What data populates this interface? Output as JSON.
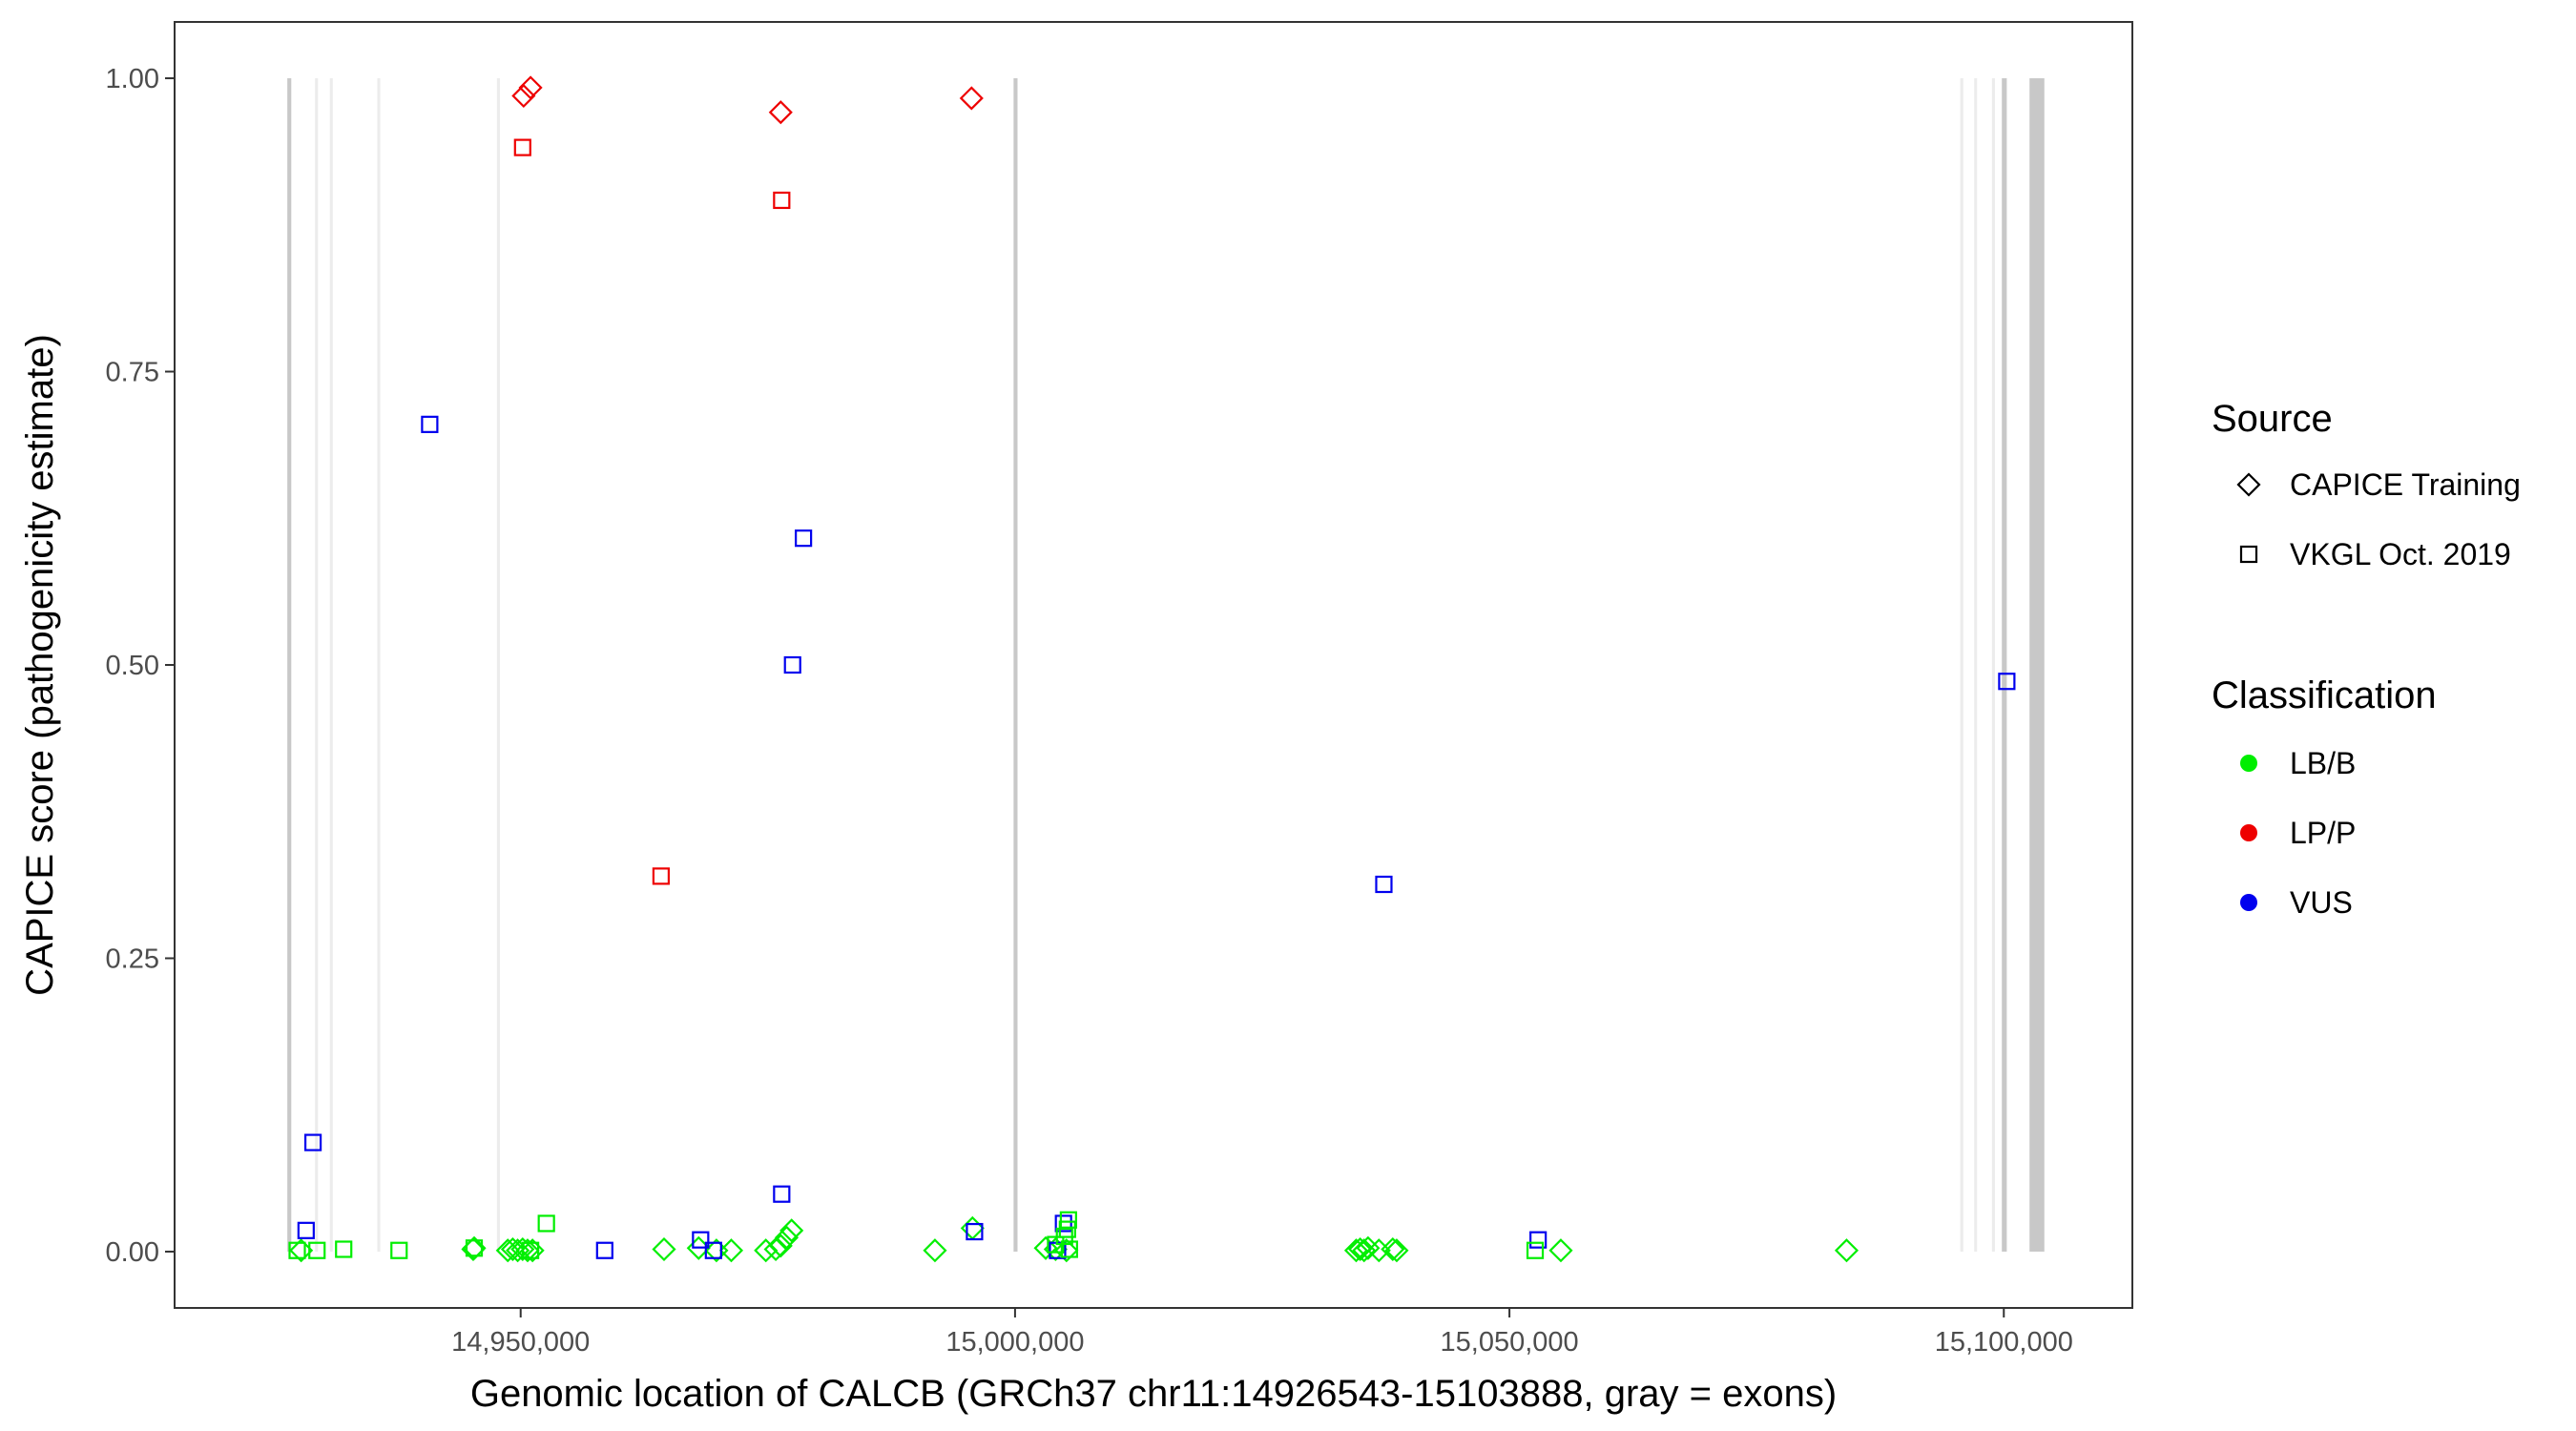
{
  "chart_data": {
    "type": "scatter",
    "title": "",
    "xlabel": "Genomic location of CALCB (GRCh37 chr11:14926543-15103888, gray = exons)",
    "ylabel": "CAPICE score (pathogenicity estimate)",
    "xlim": [
      14915000,
      15113000
    ],
    "ylim": [
      -0.048,
      1.048
    ],
    "x_ticks": [
      14950000,
      15000000,
      15050000,
      15100000
    ],
    "x_tick_labels": [
      "14,950,000",
      "15,000,000",
      "15,050,000",
      "15,100,000"
    ],
    "y_ticks": [
      0,
      0.25,
      0.5,
      0.75,
      1.0
    ],
    "y_tick_labels": [
      "0.00",
      "0.25",
      "0.50",
      "0.75",
      "1.00"
    ],
    "grid": false,
    "legend_position": "right",
    "legends": [
      {
        "title": "Source",
        "type": "shape",
        "items": [
          {
            "label": "CAPICE Training",
            "shape": "diamond"
          },
          {
            "label": "VKGL Oct. 2019",
            "shape": "square"
          }
        ]
      },
      {
        "title": "Classification",
        "type": "color",
        "items": [
          {
            "label": "LB/B",
            "color": "#00ee00"
          },
          {
            "label": "LP/P",
            "color": "#ee0000"
          },
          {
            "label": "VUS",
            "color": "#0000ee"
          }
        ]
      }
    ],
    "colors": {
      "LB/B": "#00ee00",
      "LP/P": "#ee0000",
      "VUS": "#0000ee"
    },
    "exons": [
      {
        "start": 14926400,
        "end": 14926800,
        "shade": "dark"
      },
      {
        "start": 14929200,
        "end": 14929500,
        "shade": "light"
      },
      {
        "start": 14930700,
        "end": 14931000,
        "shade": "light"
      },
      {
        "start": 14935500,
        "end": 14935800,
        "shade": "light"
      },
      {
        "start": 14947600,
        "end": 14947900,
        "shade": "light"
      },
      {
        "start": 14999850,
        "end": 15000250,
        "shade": "dark"
      },
      {
        "start": 15095600,
        "end": 15095900,
        "shade": "light"
      },
      {
        "start": 15097000,
        "end": 15097300,
        "shade": "light"
      },
      {
        "start": 15098800,
        "end": 15099100,
        "shade": "light"
      },
      {
        "start": 15099800,
        "end": 15100300,
        "shade": "dark"
      },
      {
        "start": 15102600,
        "end": 15104100,
        "shade": "dark"
      }
    ],
    "series": [
      {
        "name": "CAPICE Training",
        "shape": "diamond",
        "points": [
          {
            "x": 14950300,
            "y": 0.985,
            "class": "LP/P"
          },
          {
            "x": 14951000,
            "y": 0.992,
            "class": "LP/P"
          },
          {
            "x": 14976300,
            "y": 0.971,
            "class": "LP/P"
          },
          {
            "x": 14995600,
            "y": 0.983,
            "class": "LP/P"
          },
          {
            "x": 14927800,
            "y": 0.001,
            "class": "LB/B"
          },
          {
            "x": 14945200,
            "y": 0.002,
            "class": "LB/B"
          },
          {
            "x": 14945300,
            "y": 0.003,
            "class": "LB/B"
          },
          {
            "x": 14948700,
            "y": 0.001,
            "class": "LB/B"
          },
          {
            "x": 14949200,
            "y": 0.002,
            "class": "LB/B"
          },
          {
            "x": 14949700,
            "y": 0.001,
            "class": "LB/B"
          },
          {
            "x": 14950200,
            "y": 0.002,
            "class": "LB/B"
          },
          {
            "x": 14950700,
            "y": 0.001,
            "class": "LB/B"
          },
          {
            "x": 14951200,
            "y": 0.001,
            "class": "LB/B"
          },
          {
            "x": 14964500,
            "y": 0.002,
            "class": "LB/B"
          },
          {
            "x": 14968000,
            "y": 0.003,
            "class": "LB/B"
          },
          {
            "x": 14969800,
            "y": 0.001,
            "class": "LB/B"
          },
          {
            "x": 14971300,
            "y": 0.001,
            "class": "LB/B"
          },
          {
            "x": 14974800,
            "y": 0.001,
            "class": "LB/B"
          },
          {
            "x": 14975800,
            "y": 0.002,
            "class": "LB/B"
          },
          {
            "x": 14976300,
            "y": 0.005,
            "class": "LB/B"
          },
          {
            "x": 14976900,
            "y": 0.012,
            "class": "LB/B"
          },
          {
            "x": 14977400,
            "y": 0.018,
            "class": "LB/B"
          },
          {
            "x": 14991900,
            "y": 0.001,
            "class": "LB/B"
          },
          {
            "x": 14995700,
            "y": 0.02,
            "class": "LB/B"
          },
          {
            "x": 15003100,
            "y": 0.003,
            "class": "LB/B"
          },
          {
            "x": 15004100,
            "y": 0.002,
            "class": "LB/B"
          },
          {
            "x": 15005200,
            "y": 0.001,
            "class": "LB/B"
          },
          {
            "x": 15034500,
            "y": 0.001,
            "class": "LB/B"
          },
          {
            "x": 15034900,
            "y": 0.002,
            "class": "LB/B"
          },
          {
            "x": 15035300,
            "y": 0.001,
            "class": "LB/B"
          },
          {
            "x": 15035700,
            "y": 0.003,
            "class": "LB/B"
          },
          {
            "x": 15036800,
            "y": 0.001,
            "class": "LB/B"
          },
          {
            "x": 15038200,
            "y": 0.002,
            "class": "LB/B"
          },
          {
            "x": 15038600,
            "y": 0.001,
            "class": "LB/B"
          },
          {
            "x": 15055200,
            "y": 0.001,
            "class": "LB/B"
          },
          {
            "x": 15084100,
            "y": 0.001,
            "class": "LB/B"
          }
        ]
      },
      {
        "name": "VKGL Oct. 2019",
        "shape": "square",
        "points": [
          {
            "x": 14950200,
            "y": 0.941,
            "class": "LP/P"
          },
          {
            "x": 14976400,
            "y": 0.896,
            "class": "LP/P"
          },
          {
            "x": 14964200,
            "y": 0.32,
            "class": "LP/P"
          },
          {
            "x": 14940800,
            "y": 0.705,
            "class": "VUS"
          },
          {
            "x": 14978600,
            "y": 0.608,
            "class": "VUS"
          },
          {
            "x": 14977500,
            "y": 0.5,
            "class": "VUS"
          },
          {
            "x": 15037300,
            "y": 0.313,
            "class": "VUS"
          },
          {
            "x": 15100300,
            "y": 0.486,
            "class": "VUS"
          },
          {
            "x": 14929000,
            "y": 0.093,
            "class": "VUS"
          },
          {
            "x": 14976400,
            "y": 0.049,
            "class": "VUS"
          },
          {
            "x": 14928300,
            "y": 0.018,
            "class": "VUS"
          },
          {
            "x": 14958500,
            "y": 0.001,
            "class": "VUS"
          },
          {
            "x": 14968200,
            "y": 0.01,
            "class": "VUS"
          },
          {
            "x": 14969500,
            "y": 0.001,
            "class": "VUS"
          },
          {
            "x": 14995900,
            "y": 0.017,
            "class": "VUS"
          },
          {
            "x": 15004900,
            "y": 0.024,
            "class": "VUS"
          },
          {
            "x": 15004300,
            "y": 0.001,
            "class": "VUS"
          },
          {
            "x": 15052900,
            "y": 0.01,
            "class": "VUS"
          },
          {
            "x": 14927400,
            "y": 0.001,
            "class": "LB/B"
          },
          {
            "x": 14929400,
            "y": 0.001,
            "class": "LB/B"
          },
          {
            "x": 14932100,
            "y": 0.002,
            "class": "LB/B"
          },
          {
            "x": 14937700,
            "y": 0.001,
            "class": "LB/B"
          },
          {
            "x": 14945300,
            "y": 0.003,
            "class": "LB/B"
          },
          {
            "x": 14951000,
            "y": 0.001,
            "class": "LB/B"
          },
          {
            "x": 14952600,
            "y": 0.024,
            "class": "LB/B"
          },
          {
            "x": 15004100,
            "y": 0.006,
            "class": "LB/B"
          },
          {
            "x": 15005000,
            "y": 0.013,
            "class": "LB/B"
          },
          {
            "x": 15005300,
            "y": 0.019,
            "class": "LB/B"
          },
          {
            "x": 15005400,
            "y": 0.027,
            "class": "LB/B"
          },
          {
            "x": 15005500,
            "y": 0.002,
            "class": "LB/B"
          },
          {
            "x": 15052600,
            "y": 0.001,
            "class": "LB/B"
          }
        ]
      }
    ]
  }
}
